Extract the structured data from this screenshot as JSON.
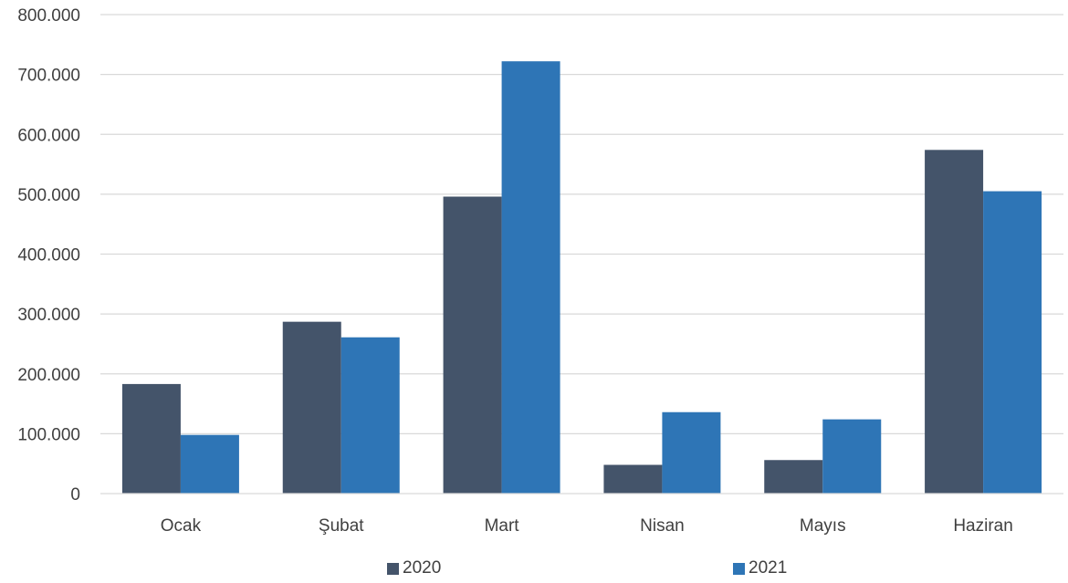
{
  "chart_data": {
    "type": "bar",
    "title": "",
    "xlabel": "",
    "ylabel": "",
    "categories": [
      "Ocak",
      "Şubat",
      "Mart",
      "Nisan",
      "Mayıs",
      "Haziran"
    ],
    "series": [
      {
        "name": "2020",
        "values": [
          183000,
          287000,
          496000,
          48000,
          56000,
          574000
        ],
        "color": "#44546a"
      },
      {
        "name": "2021",
        "values": [
          98000,
          261000,
          722000,
          136000,
          124000,
          505000
        ],
        "color": "#2e75b6"
      }
    ],
    "ylim": [
      0,
      800000
    ],
    "yticks": [
      0,
      100000,
      200000,
      300000,
      400000,
      500000,
      600000,
      700000,
      800000
    ],
    "ytick_labels": [
      "0",
      "100.000",
      "200.000",
      "300.000",
      "400.000",
      "500.000",
      "600.000",
      "700.000",
      "800.000"
    ],
    "grid": true,
    "legend_position": "bottom"
  }
}
